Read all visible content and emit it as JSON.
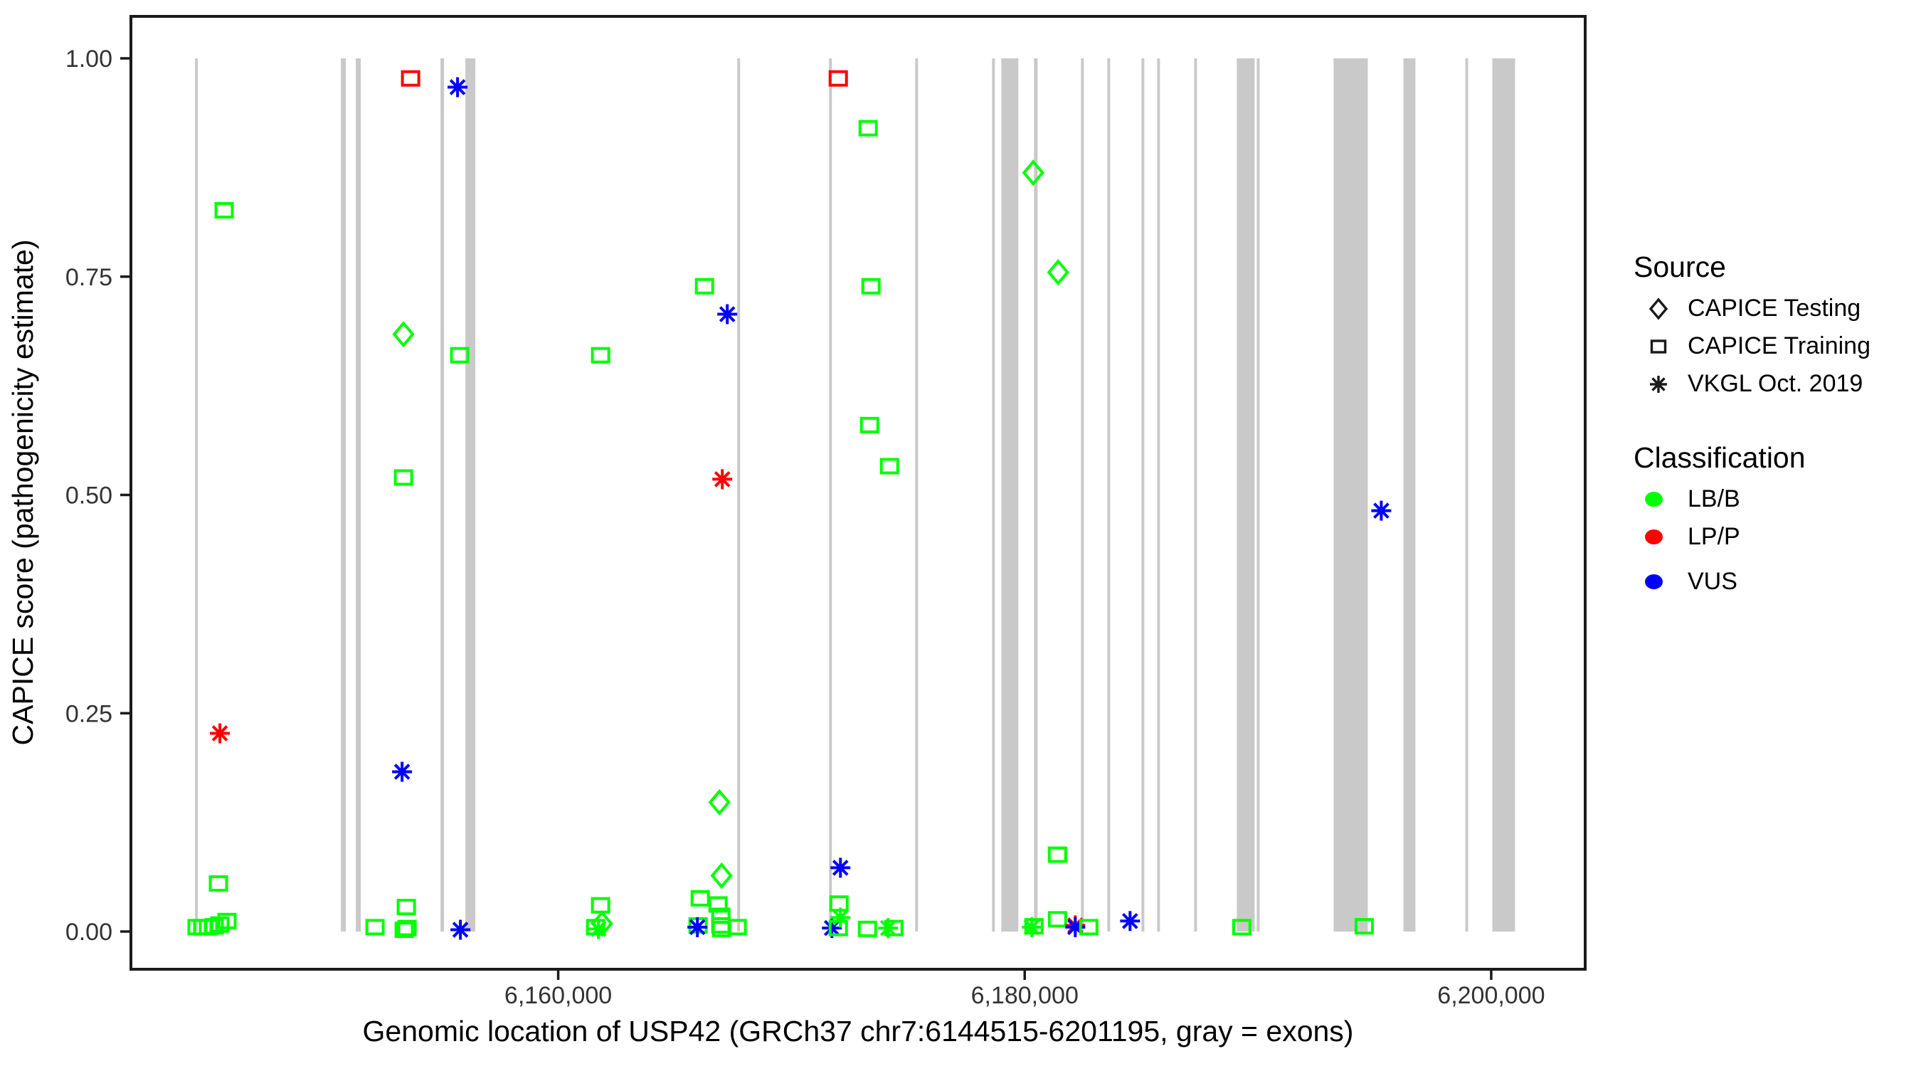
{
  "legend": {
    "source": {
      "title": "Source",
      "items": [
        {
          "label": "CAPICE Testing",
          "marker": "diamond-outline"
        },
        {
          "label": "CAPICE Training",
          "marker": "square-outline"
        },
        {
          "label": "VKGL Oct. 2019",
          "marker": "asterisk"
        }
      ]
    },
    "classification": {
      "title": "Classification",
      "items": [
        {
          "label": "LB/B",
          "color": "#00FF00"
        },
        {
          "label": "LP/P",
          "color": "#FF0000"
        },
        {
          "label": "VUS",
          "color": "#0000FF"
        }
      ]
    }
  },
  "chart_data": {
    "type": "scatter",
    "title": "",
    "xlabel": "Genomic location of USP42 (GRCh37 chr7:6144515-6201195, gray = exons)",
    "ylabel": "CAPICE score (pathogenicity estimate)",
    "gene": {
      "name": "USP42",
      "assembly": "GRCh37",
      "chromosome": "chr7",
      "start": 6144515,
      "end": 6201195
    },
    "x_domain": [
      6141681,
      6204029
    ],
    "y_domain": [
      0,
      1
    ],
    "grid": "off",
    "legend_position": "right",
    "exon_color": "#C9C9C9",
    "class_colors": {
      "LB/B": "#00FF00",
      "LP/P": "#FF0000",
      "VUS": "#0000FF"
    },
    "x_ticks": [
      {
        "value": 6160000,
        "label": "6,160,000"
      },
      {
        "value": 6180000,
        "label": "6,180,000"
      },
      {
        "value": 6200000,
        "label": "6,200,000"
      }
    ],
    "y_ticks": [
      {
        "value": 1.0,
        "label": "1.00"
      },
      {
        "value": 0.75,
        "label": "0.75"
      },
      {
        "value": 0.5,
        "label": "0.50"
      },
      {
        "value": 0.25,
        "label": "0.25"
      },
      {
        "value": 0.0,
        "label": "0.00"
      }
    ],
    "exons": [
      {
        "start": 6144430,
        "end": 6144550
      },
      {
        "start": 6150682,
        "end": 6150896
      },
      {
        "start": 6151323,
        "end": 6151536
      },
      {
        "start": 6154953,
        "end": 6155106
      },
      {
        "start": 6156021,
        "end": 6156448
      },
      {
        "start": 6167676,
        "end": 6167798
      },
      {
        "start": 6171612,
        "end": 6171734
      },
      {
        "start": 6175304,
        "end": 6175426
      },
      {
        "start": 6178599,
        "end": 6178721
      },
      {
        "start": 6178996,
        "end": 6179728
      },
      {
        "start": 6180399,
        "end": 6180552
      },
      {
        "start": 6182413,
        "end": 6182535
      },
      {
        "start": 6183542,
        "end": 6183664
      },
      {
        "start": 6185006,
        "end": 6185128
      },
      {
        "start": 6185677,
        "end": 6185799
      },
      {
        "start": 6187264,
        "end": 6187386
      },
      {
        "start": 6189095,
        "end": 6189857
      },
      {
        "start": 6189949,
        "end": 6190071
      },
      {
        "start": 6193244,
        "end": 6194708
      },
      {
        "start": 6196234,
        "end": 6196752
      },
      {
        "start": 6198888,
        "end": 6199010
      },
      {
        "start": 6200047,
        "end": 6201023
      }
    ],
    "points": [
      {
        "pos": 6144518,
        "score": 0.005,
        "cls": "LB/B",
        "src": "training"
      },
      {
        "pos": 6144762,
        "score": 0.005,
        "cls": "LB/B",
        "src": "training"
      },
      {
        "pos": 6145006,
        "score": 0.005,
        "cls": "LB/B",
        "src": "training"
      },
      {
        "pos": 6145250,
        "score": 0.006,
        "cls": "LB/B",
        "src": "training"
      },
      {
        "pos": 6145495,
        "score": 0.008,
        "cls": "LB/B",
        "src": "training"
      },
      {
        "pos": 6145800,
        "score": 0.012,
        "cls": "LB/B",
        "src": "training"
      },
      {
        "pos": 6145434,
        "score": 0.055,
        "cls": "LB/B",
        "src": "training"
      },
      {
        "pos": 6145678,
        "score": 0.826,
        "cls": "LB/B",
        "src": "training"
      },
      {
        "pos": 6145495,
        "score": 0.227,
        "cls": "LP/P",
        "src": "vkgl"
      },
      {
        "pos": 6152146,
        "score": 0.005,
        "cls": "LB/B",
        "src": "training"
      },
      {
        "pos": 6153306,
        "score": 0.183,
        "cls": "VUS",
        "src": "vkgl"
      },
      {
        "pos": 6153398,
        "score": 0.002,
        "cls": "LB/B",
        "src": "training"
      },
      {
        "pos": 6153520,
        "score": 0.004,
        "cls": "LB/B",
        "src": "training"
      },
      {
        "pos": 6153489,
        "score": 0.028,
        "cls": "LB/B",
        "src": "training"
      },
      {
        "pos": 6153367,
        "score": 0.52,
        "cls": "LB/B",
        "src": "training"
      },
      {
        "pos": 6153367,
        "score": 0.684,
        "cls": "LB/B",
        "src": "testing"
      },
      {
        "pos": 6153672,
        "score": 0.977,
        "cls": "LP/P",
        "src": "training"
      },
      {
        "pos": 6155685,
        "score": 0.967,
        "cls": "VUS",
        "src": "vkgl"
      },
      {
        "pos": 6155776,
        "score": 0.66,
        "cls": "LB/B",
        "src": "training"
      },
      {
        "pos": 6155807,
        "score": 0.002,
        "cls": "VUS",
        "src": "vkgl"
      },
      {
        "pos": 6161817,
        "score": 0.66,
        "cls": "LB/B",
        "src": "training"
      },
      {
        "pos": 6161817,
        "score": 0.03,
        "cls": "LB/B",
        "src": "training"
      },
      {
        "pos": 6161604,
        "score": 0.005,
        "cls": "LB/B",
        "src": "training"
      },
      {
        "pos": 6161726,
        "score": 0.003,
        "cls": "LB/B",
        "src": "vkgl"
      },
      {
        "pos": 6161879,
        "score": 0.009,
        "cls": "LB/B",
        "src": "testing"
      },
      {
        "pos": 6165997,
        "score": 0.007,
        "cls": "LB/B",
        "src": "training"
      },
      {
        "pos": 6166089,
        "score": 0.038,
        "cls": "LB/B",
        "src": "training"
      },
      {
        "pos": 6165967,
        "score": 0.005,
        "cls": "VUS",
        "src": "vkgl"
      },
      {
        "pos": 6166852,
        "score": 0.031,
        "cls": "LB/B",
        "src": "training"
      },
      {
        "pos": 6166272,
        "score": 0.739,
        "cls": "LB/B",
        "src": "training"
      },
      {
        "pos": 6166913,
        "score": 0.148,
        "cls": "LB/B",
        "src": "testing"
      },
      {
        "pos": 6167004,
        "score": 0.064,
        "cls": "LB/B",
        "src": "testing"
      },
      {
        "pos": 6166974,
        "score": 0.018,
        "cls": "LB/B",
        "src": "training"
      },
      {
        "pos": 6166974,
        "score": 0.007,
        "cls": "LB/B",
        "src": "training"
      },
      {
        "pos": 6167004,
        "score": 0.003,
        "cls": "LB/B",
        "src": "training"
      },
      {
        "pos": 6167675,
        "score": 0.005,
        "cls": "LB/B",
        "src": "training"
      },
      {
        "pos": 6167249,
        "score": 0.707,
        "cls": "VUS",
        "src": "vkgl"
      },
      {
        "pos": 6167035,
        "score": 0.518,
        "cls": "LP/P",
        "src": "vkgl"
      },
      {
        "pos": 6171734,
        "score": 0.004,
        "cls": "VUS",
        "src": "vkgl"
      },
      {
        "pos": 6172100,
        "score": 0.073,
        "cls": "VUS",
        "src": "vkgl"
      },
      {
        "pos": 6172039,
        "score": 0.032,
        "cls": "LB/B",
        "src": "training"
      },
      {
        "pos": 6172100,
        "score": 0.016,
        "cls": "LB/B",
        "src": "vkgl"
      },
      {
        "pos": 6172008,
        "score": 0.004,
        "cls": "LB/B",
        "src": "training"
      },
      {
        "pos": 6173259,
        "score": 0.003,
        "cls": "LB/B",
        "src": "training"
      },
      {
        "pos": 6174144,
        "score": 0.004,
        "cls": "LB/B",
        "src": "vkgl"
      },
      {
        "pos": 6174388,
        "score": 0.004,
        "cls": "LB/B",
        "src": "training"
      },
      {
        "pos": 6172008,
        "score": 0.977,
        "cls": "LP/P",
        "src": "training"
      },
      {
        "pos": 6173289,
        "score": 0.92,
        "cls": "LB/B",
        "src": "training"
      },
      {
        "pos": 6173411,
        "score": 0.739,
        "cls": "LB/B",
        "src": "training"
      },
      {
        "pos": 6173350,
        "score": 0.58,
        "cls": "LB/B",
        "src": "training"
      },
      {
        "pos": 6174205,
        "score": 0.533,
        "cls": "LB/B",
        "src": "training"
      },
      {
        "pos": 6180368,
        "score": 0.869,
        "cls": "LB/B",
        "src": "testing"
      },
      {
        "pos": 6181435,
        "score": 0.755,
        "cls": "LB/B",
        "src": "testing"
      },
      {
        "pos": 6180307,
        "score": 0.005,
        "cls": "LB/B",
        "src": "vkgl"
      },
      {
        "pos": 6180398,
        "score": 0.006,
        "cls": "LB/B",
        "src": "training"
      },
      {
        "pos": 6181405,
        "score": 0.088,
        "cls": "LB/B",
        "src": "training"
      },
      {
        "pos": 6181405,
        "score": 0.014,
        "cls": "LB/B",
        "src": "training"
      },
      {
        "pos": 6182168,
        "score": 0.007,
        "cls": "LP/P",
        "src": "vkgl"
      },
      {
        "pos": 6182168,
        "score": 0.005,
        "cls": "VUS",
        "src": "vkgl"
      },
      {
        "pos": 6182747,
        "score": 0.005,
        "cls": "LB/B",
        "src": "training"
      },
      {
        "pos": 6184517,
        "score": 0.012,
        "cls": "VUS",
        "src": "vkgl"
      },
      {
        "pos": 6189307,
        "score": 0.005,
        "cls": "LB/B",
        "src": "training"
      },
      {
        "pos": 6194555,
        "score": 0.006,
        "cls": "LB/B",
        "src": "training"
      },
      {
        "pos": 6195287,
        "score": 0.482,
        "cls": "VUS",
        "src": "vkgl"
      }
    ]
  }
}
